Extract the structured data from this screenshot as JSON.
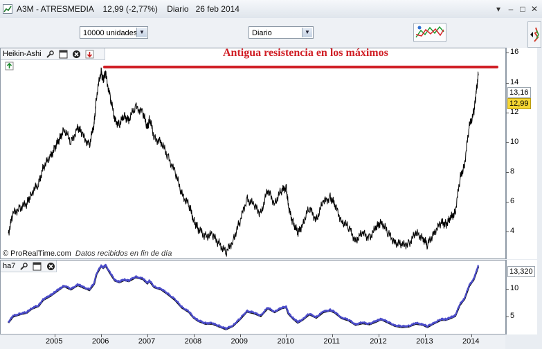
{
  "window": {
    "title": "A3M - ATRESMEDIA",
    "price_change": "12,99 (-2,77%)",
    "timeframe": "Diario",
    "date": "26 feb 2014"
  },
  "toolbar": {
    "units_select": "10000 unidades",
    "period_select": "Diario",
    "indicator_button_icon": "indicators-chart-icon"
  },
  "main_panel": {
    "name": "Heikin-Ashi",
    "credit_source": "© ProRealTime.com",
    "credit_note": "Datos recibidos en fin de día",
    "annotation": "Antigua resistencia en los máximos",
    "annotation_color": "#d01e25",
    "last_value_1": "13,16",
    "last_value_2": "12,99"
  },
  "sub_panel": {
    "name": "ha7",
    "last_value": "13,320",
    "line_color": "#4a4bc9"
  },
  "chart_data": [
    {
      "type": "line",
      "title": "Heikin-Ashi",
      "x_unit": "year",
      "ylim": [
        2.3,
        16.3
      ],
      "y_ticks": [
        4,
        6,
        8,
        10,
        12,
        14,
        16
      ],
      "x_ticks": [
        "2005",
        "2006",
        "2007",
        "2008",
        "2009",
        "2010",
        "2011",
        "2012",
        "2013",
        "2014"
      ],
      "series": [
        {
          "color": "#000000",
          "x": [
            2004.0,
            2004.1,
            2004.25,
            2004.4,
            2004.5,
            2004.65,
            2004.75,
            2004.9,
            2005.0,
            2005.1,
            2005.2,
            2005.35,
            2005.5,
            2005.6,
            2005.75,
            2005.85,
            2005.9,
            2006.0,
            2006.05,
            2006.1,
            2006.2,
            2006.3,
            2006.4,
            2006.5,
            2006.6,
            2006.75,
            2006.9,
            2007.0,
            2007.05,
            2007.15,
            2007.3,
            2007.45,
            2007.6,
            2007.75,
            2007.9,
            2008.0,
            2008.1,
            2008.25,
            2008.4,
            2008.55,
            2008.7,
            2008.85,
            2009.0,
            2009.15,
            2009.3,
            2009.45,
            2009.6,
            2009.75,
            2009.9,
            2010.0,
            2010.05,
            2010.15,
            2010.25,
            2010.35,
            2010.5,
            2010.65,
            2010.8,
            2010.95,
            2011.05,
            2011.2,
            2011.35,
            2011.5,
            2011.65,
            2011.8,
            2011.95,
            2012.05,
            2012.2,
            2012.35,
            2012.5,
            2012.65,
            2012.8,
            2012.95,
            2013.05,
            2013.2,
            2013.35,
            2013.45,
            2013.55,
            2013.65,
            2013.75,
            2013.85,
            2013.95,
            2014.05,
            2014.1,
            2014.15
          ],
          "y": [
            3.9,
            5.2,
            5.6,
            5.9,
            6.6,
            7.2,
            8.3,
            9.0,
            9.6,
            10.2,
            10.9,
            10.0,
            11.0,
            10.5,
            9.8,
            11.2,
            13.0,
            14.8,
            14.2,
            14.6,
            13.0,
            11.5,
            11.2,
            11.8,
            11.5,
            12.4,
            12.0,
            11.0,
            11.6,
            10.3,
            10.0,
            9.0,
            8.0,
            6.5,
            5.8,
            4.8,
            4.2,
            3.7,
            3.8,
            3.2,
            2.6,
            3.4,
            4.7,
            6.2,
            5.8,
            5.2,
            6.8,
            5.9,
            6.8,
            7.0,
            5.6,
            4.6,
            3.9,
            4.5,
            5.6,
            4.8,
            6.0,
            6.3,
            5.8,
            4.7,
            4.3,
            3.4,
            3.9,
            3.6,
            4.3,
            4.7,
            3.9,
            3.3,
            3.1,
            3.2,
            3.9,
            3.6,
            3.1,
            4.0,
            4.6,
            4.5,
            4.9,
            5.3,
            7.5,
            8.5,
            11.0,
            12.0,
            13.2,
            14.6
          ]
        }
      ]
    },
    {
      "type": "line",
      "title": "ha7",
      "x_unit": "year",
      "ylim": [
        2.0,
        15.0
      ],
      "y_ticks": [
        5,
        10
      ],
      "x_ticks": [
        "2005",
        "2006",
        "2007",
        "2008",
        "2009",
        "2010",
        "2011",
        "2012",
        "2013",
        "2014"
      ],
      "series": [
        {
          "color": "#4a4bc9",
          "x": [
            2004.0,
            2004.1,
            2004.25,
            2004.4,
            2004.5,
            2004.65,
            2004.75,
            2004.9,
            2005.0,
            2005.1,
            2005.2,
            2005.35,
            2005.5,
            2005.6,
            2005.75,
            2005.85,
            2005.9,
            2006.0,
            2006.05,
            2006.1,
            2006.2,
            2006.3,
            2006.4,
            2006.5,
            2006.6,
            2006.75,
            2006.9,
            2007.0,
            2007.05,
            2007.15,
            2007.3,
            2007.45,
            2007.6,
            2007.75,
            2007.9,
            2008.0,
            2008.1,
            2008.25,
            2008.4,
            2008.55,
            2008.7,
            2008.85,
            2009.0,
            2009.15,
            2009.3,
            2009.45,
            2009.6,
            2009.75,
            2009.9,
            2010.0,
            2010.05,
            2010.15,
            2010.25,
            2010.35,
            2010.5,
            2010.65,
            2010.8,
            2010.95,
            2011.05,
            2011.2,
            2011.35,
            2011.5,
            2011.65,
            2011.8,
            2011.95,
            2012.05,
            2012.2,
            2012.35,
            2012.5,
            2012.65,
            2012.8,
            2012.95,
            2013.05,
            2013.2,
            2013.35,
            2013.45,
            2013.55,
            2013.65,
            2013.75,
            2013.85,
            2013.95,
            2014.05,
            2014.1,
            2014.15
          ],
          "y": [
            4.0,
            5.1,
            5.5,
            5.8,
            6.5,
            7.0,
            8.1,
            8.8,
            9.4,
            10.0,
            10.6,
            10.0,
            10.8,
            10.4,
            9.9,
            11.0,
            12.7,
            14.2,
            13.9,
            14.3,
            12.9,
            11.6,
            11.3,
            11.7,
            11.5,
            12.2,
            11.9,
            11.1,
            11.5,
            10.4,
            10.0,
            9.1,
            8.1,
            6.7,
            5.9,
            4.9,
            4.3,
            3.8,
            3.8,
            3.3,
            2.8,
            3.4,
            4.6,
            6.0,
            5.7,
            5.2,
            6.6,
            5.9,
            6.6,
            6.8,
            5.6,
            4.7,
            4.0,
            4.5,
            5.5,
            4.9,
            5.9,
            6.2,
            5.8,
            4.8,
            4.4,
            3.6,
            3.9,
            3.7,
            4.2,
            4.6,
            4.0,
            3.4,
            3.2,
            3.3,
            3.8,
            3.6,
            3.2,
            3.9,
            4.5,
            4.5,
            4.8,
            5.2,
            7.2,
            8.3,
            10.6,
            11.8,
            13.0,
            14.2
          ]
        }
      ]
    }
  ]
}
